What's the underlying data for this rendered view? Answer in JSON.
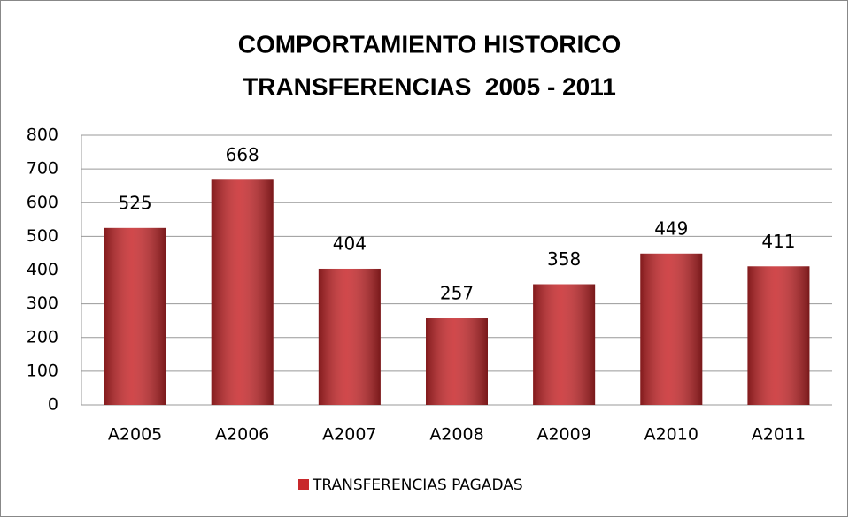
{
  "chart_data": {
    "type": "bar",
    "title": [
      "COMPORTAMIENTO HISTORICO",
      "TRANSFERENCIAS  2005 - 2011"
    ],
    "categories": [
      "A2005",
      "A2006",
      "A2007",
      "A2008",
      "A2009",
      "A2010",
      "A2011"
    ],
    "series": [
      {
        "name": "TRANSFERENCIAS PAGADAS",
        "color": "#c8282b",
        "values": [
          525,
          668,
          404,
          257,
          358,
          449,
          411
        ]
      }
    ],
    "ylim": [
      0,
      800
    ],
    "yticks": [
      0,
      100,
      200,
      300,
      400,
      500,
      600,
      700,
      800
    ],
    "grid": true,
    "legend": "bottom"
  }
}
